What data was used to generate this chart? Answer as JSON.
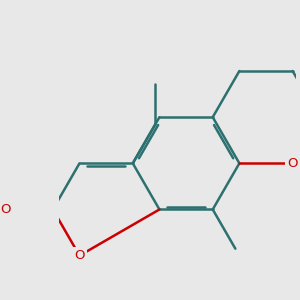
{
  "bg_color": "#e8e8e8",
  "bond_color": "#2d7070",
  "oxygen_color": "#cc0000",
  "lw": 1.8,
  "dbo": 0.038,
  "figsize": [
    3.0,
    3.0
  ],
  "dpi": 100,
  "xlim": [
    -1.6,
    1.6
  ],
  "ylim": [
    -1.6,
    1.6
  ]
}
